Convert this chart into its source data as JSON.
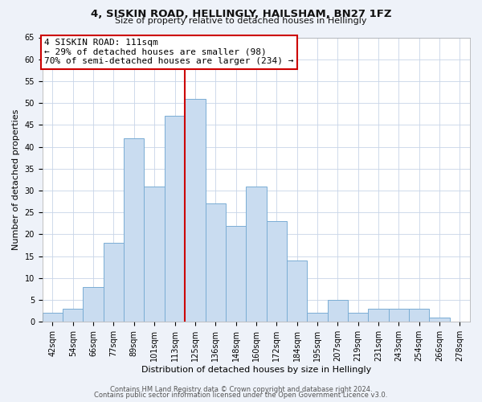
{
  "title": "4, SISKIN ROAD, HELLINGLY, HAILSHAM, BN27 1FZ",
  "subtitle": "Size of property relative to detached houses in Hellingly",
  "xlabel": "Distribution of detached houses by size in Hellingly",
  "ylabel": "Number of detached properties",
  "bar_labels": [
    "42sqm",
    "54sqm",
    "66sqm",
    "77sqm",
    "89sqm",
    "101sqm",
    "113sqm",
    "125sqm",
    "136sqm",
    "148sqm",
    "160sqm",
    "172sqm",
    "184sqm",
    "195sqm",
    "207sqm",
    "219sqm",
    "231sqm",
    "243sqm",
    "254sqm",
    "266sqm",
    "278sqm"
  ],
  "bar_heights": [
    2,
    3,
    8,
    18,
    42,
    31,
    47,
    51,
    27,
    22,
    31,
    23,
    14,
    2,
    5,
    2,
    3,
    3,
    3,
    1,
    0
  ],
  "bar_color": "#c9dcf0",
  "bar_edge_color": "#7aadd4",
  "vline_color": "#cc0000",
  "ylim": [
    0,
    65
  ],
  "yticks": [
    0,
    5,
    10,
    15,
    20,
    25,
    30,
    35,
    40,
    45,
    50,
    55,
    60,
    65
  ],
  "annotation_title": "4 SISKIN ROAD: 111sqm",
  "annotation_line1": "← 29% of detached houses are smaller (98)",
  "annotation_line2": "70% of semi-detached houses are larger (234) →",
  "annotation_box_facecolor": "#ffffff",
  "annotation_box_edgecolor": "#cc0000",
  "footer_line1": "Contains HM Land Registry data © Crown copyright and database right 2024.",
  "footer_line2": "Contains public sector information licensed under the Open Government Licence v3.0.",
  "background_color": "#eef2f9",
  "plot_background": "#ffffff",
  "grid_color": "#c8d4e8",
  "title_fontsize": 9.5,
  "subtitle_fontsize": 8,
  "axis_label_fontsize": 8,
  "tick_fontsize": 7,
  "footer_fontsize": 6,
  "annot_fontsize": 8
}
